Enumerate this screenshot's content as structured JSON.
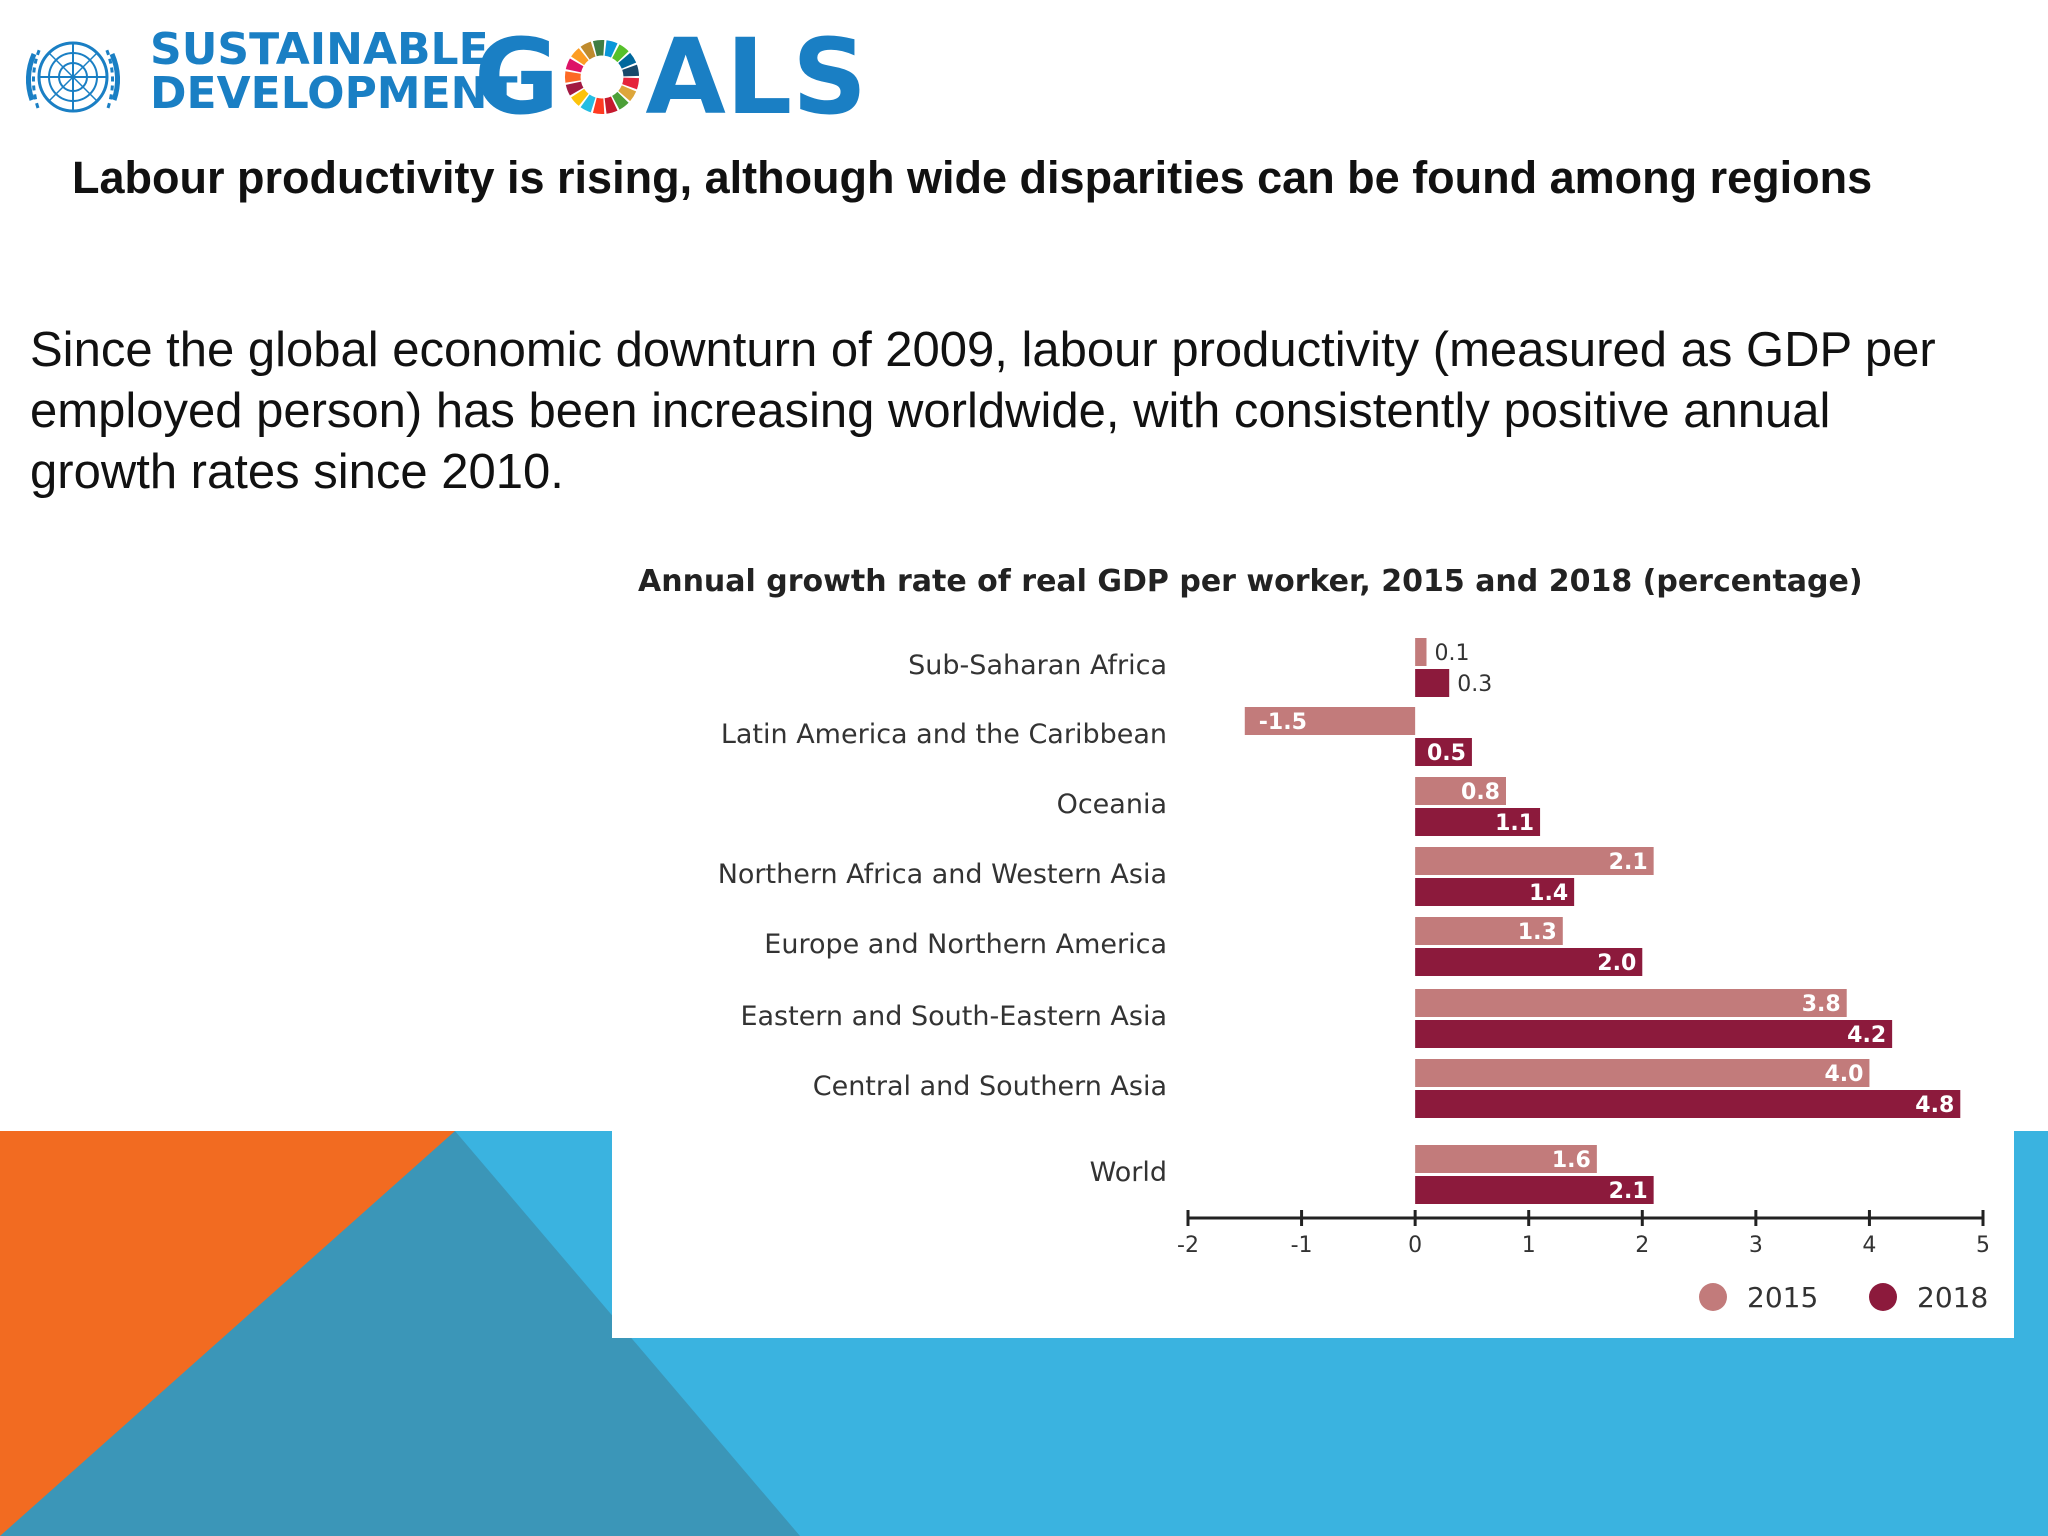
{
  "logo": {
    "line1": "SUSTAINABLE",
    "line2": "DEVELOPMENT",
    "goals_g": "G",
    "goals_rest": "ALS",
    "emblem": "un-emblem"
  },
  "headline": "Labour productivity is rising, although wide disparities can be found among regions",
  "body": "Since the global economic downturn of 2009, labour productivity (measured as GDP per employed person) has been increasing worldwide, with consistently positive annual growth rates since 2010.",
  "colors": {
    "orange": "#f26b21",
    "light_blue": "#3ab3e0",
    "mid_blue": "#3b96b8",
    "series_2015": "#c27b7b",
    "series_2018": "#8c1a3c"
  },
  "chart_data": {
    "type": "bar",
    "orientation": "horizontal",
    "title": "Annual growth rate of real GDP per worker, 2015 and 2018 (percentage)",
    "categories": [
      "Sub-Saharan Africa",
      "Latin America and the Caribbean",
      "Oceania",
      "Northern Africa and Western Asia",
      "Europe and Northern America",
      "Eastern and South-Eastern Asia",
      "Central and Southern Asia",
      "World"
    ],
    "series": [
      {
        "name": "2015",
        "values": [
          0.1,
          -1.5,
          0.8,
          2.1,
          1.3,
          3.8,
          4.0,
          1.6
        ],
        "labels": [
          "0.1",
          "-1.5",
          "0.8",
          "2.1",
          "1.3",
          "3.8",
          "4.0",
          "1.6"
        ]
      },
      {
        "name": "2018",
        "values": [
          0.3,
          0.5,
          1.1,
          1.4,
          2.0,
          4.2,
          4.8,
          2.1
        ],
        "labels": [
          "0.3",
          "0.5",
          "1.1",
          "1.4",
          "2.0",
          "4.2",
          "4.8",
          "2.1"
        ]
      }
    ],
    "xlim": [
      -2,
      5
    ],
    "xticks": [
      "-2",
      "-1",
      "0",
      "1",
      "2",
      "3",
      "4",
      "5"
    ],
    "legend": "bottom-right",
    "grid": false
  }
}
